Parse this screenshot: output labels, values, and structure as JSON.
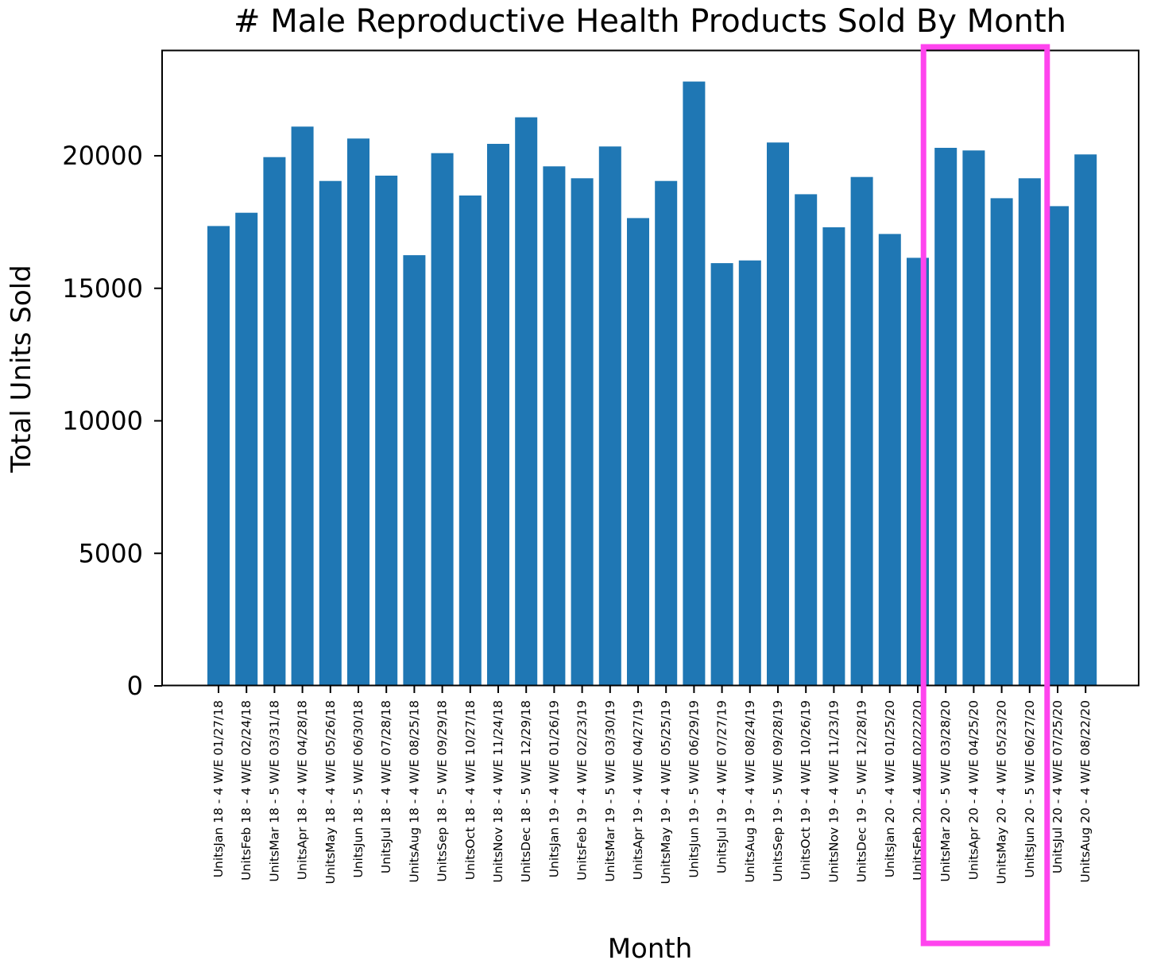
{
  "chart_data": {
    "type": "bar",
    "title": "# Male Reproductive Health Products Sold By Month",
    "xlabel": "Month",
    "ylabel": "Total Units Sold",
    "ylim": [
      0,
      24000
    ],
    "yticks": [
      0,
      5000,
      10000,
      15000,
      20000
    ],
    "grid": false,
    "categories": [
      "UnitsJan 18 - 4 W/E 01/27/18",
      "UnitsFeb 18 - 4 W/E 02/24/18",
      "UnitsMar 18 - 5 W/E 03/31/18",
      "UnitsApr 18 - 4 W/E 04/28/18",
      "UnitsMay 18 - 4 W/E 05/26/18",
      "UnitsJun 18 - 5 W/E 06/30/18",
      "UnitsJul 18 - 4 W/E 07/28/18",
      "UnitsAug 18 - 4 W/E 08/25/18",
      "UnitsSep 18 - 5 W/E 09/29/18",
      "UnitsOct 18 - 4 W/E 10/27/18",
      "UnitsNov 18 - 4 W/E 11/24/18",
      "UnitsDec 18 - 5 W/E 12/29/18",
      "UnitsJan 19 - 4 W/E 01/26/19",
      "UnitsFeb 19 - 4 W/E 02/23/19",
      "UnitsMar 19 - 5 W/E 03/30/19",
      "UnitsApr 19 - 4 W/E 04/27/19",
      "UnitsMay 19 - 4 W/E 05/25/19",
      "UnitsJun 19 - 5 W/E 06/29/19",
      "UnitsJul 19 - 4 W/E 07/27/19",
      "UnitsAug 19 - 4 W/E 08/24/19",
      "UnitsSep 19 - 5 W/E 09/28/19",
      "UnitsOct 19 - 4 W/E 10/26/19",
      "UnitsNov 19 - 4 W/E 11/23/19",
      "UnitsDec 19 - 5 W/E 12/28/19",
      "UnitsJan 20 - 4 W/E 01/25/20",
      "UnitsFeb 20 - 4 W/E 02/22/20",
      "UnitsMar 20 - 5 W/E 03/28/20",
      "UnitsApr 20 - 4 W/E 04/25/20",
      "UnitsMay 20 - 4 W/E 05/23/20",
      "UnitsJun 20 - 5 W/E 06/27/20",
      "UnitsJul 20 - 4 W/E 07/25/20",
      "UnitsAug 20 - 4 W/E 08/22/20"
    ],
    "values": [
      17350,
      17850,
      19950,
      21100,
      19050,
      20650,
      19250,
      16250,
      20100,
      18500,
      20450,
      21450,
      19600,
      19150,
      20350,
      17650,
      19050,
      22800,
      15950,
      16050,
      20500,
      18550,
      17300,
      19200,
      17050,
      16150,
      20300,
      20200,
      18400,
      19150,
      18100,
      20050
    ],
    "bar_color": "#1f77b4",
    "highlight": {
      "color": "#ff44ee",
      "categories": [
        "UnitsMar 20 - 5 W/E 03/28/20",
        "UnitsApr 20 - 4 W/E 04/25/20",
        "UnitsMay 20 - 4 W/E 05/23/20",
        "UnitsJun 20 - 5 W/E 06/27/20"
      ]
    }
  }
}
